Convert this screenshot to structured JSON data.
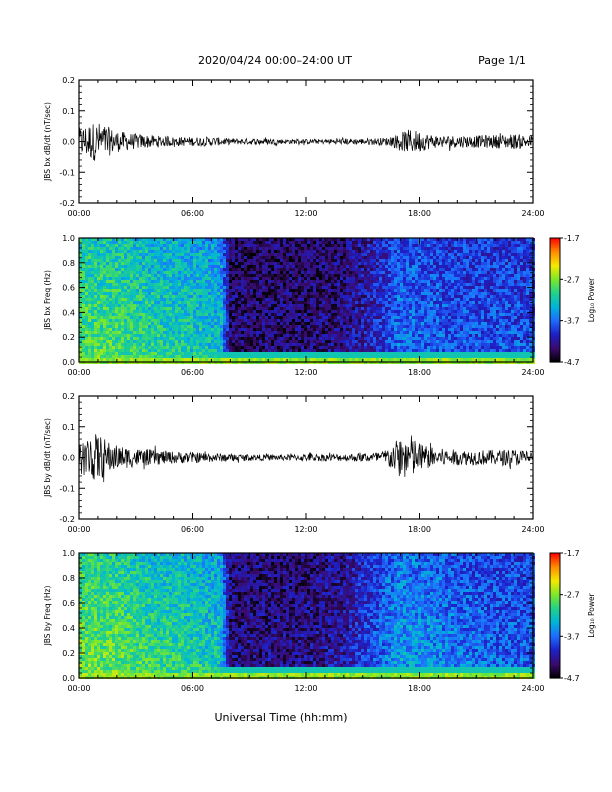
{
  "header": {
    "title": "2020/04/24  00:00–24:00 UT",
    "page": "Page 1/1"
  },
  "xaxis": {
    "label": "Universal Time (hh:mm)",
    "range_hours": [
      0,
      24
    ],
    "ticks": [
      0,
      6,
      12,
      18,
      24
    ],
    "tick_labels": [
      "00:00",
      "06:00",
      "12:00",
      "18:00",
      "24:00"
    ]
  },
  "colors": {
    "colormap": [
      "#000000",
      "#3a0b6e",
      "#1d20c8",
      "#1f6cff",
      "#00b4d8",
      "#22d18a",
      "#7ee82a",
      "#f5e900",
      "#ff8a00",
      "#ff0000"
    ],
    "trace": "#000000"
  },
  "chart_data": [
    {
      "type": "line",
      "ylabel": "JBS bx dB/dt (nT/sec)",
      "ylim": [
        -0.2,
        0.2
      ],
      "yticks": [
        -0.2,
        -0.1,
        0.0,
        0.1,
        0.2
      ],
      "ytick_labels": [
        "-0.2",
        "-0.1",
        "0.0",
        "0.1",
        "0.2"
      ],
      "envelope_hours": [
        0,
        0.5,
        1,
        1.5,
        2,
        3,
        4,
        5,
        6,
        7,
        8,
        9,
        10,
        11,
        12,
        13,
        14,
        15,
        16,
        16.5,
        17,
        17.5,
        18,
        18.5,
        19,
        20,
        21,
        22,
        23,
        24
      ],
      "envelope_amplitude": [
        0.045,
        0.06,
        0.065,
        0.05,
        0.035,
        0.025,
        0.02,
        0.015,
        0.015,
        0.015,
        0.01,
        0.01,
        0.01,
        0.008,
        0.008,
        0.008,
        0.01,
        0.01,
        0.012,
        0.015,
        0.03,
        0.04,
        0.035,
        0.025,
        0.02,
        0.02,
        0.02,
        0.022,
        0.025,
        0.02
      ]
    },
    {
      "type": "heatmap",
      "ylabel": "JBS bx Freq (Hz)",
      "ylim": [
        0.0,
        1.0
      ],
      "yticks": [
        0.0,
        0.2,
        0.4,
        0.6,
        0.8,
        1.0
      ],
      "ytick_labels": [
        "0.0",
        "0.2",
        "0.4",
        "0.6",
        "0.8",
        "1.0"
      ],
      "colorbar": {
        "label": "Log₁₀ Power",
        "range": [
          -4.7,
          -1.7
        ],
        "ticks": [
          -1.7,
          -2.7,
          -3.7,
          -4.7
        ],
        "tick_labels": [
          "-1.7",
          "-2.7",
          "-3.7",
          "-4.7"
        ]
      },
      "activity_hours": [
        0,
        2,
        4,
        6,
        7.5,
        8,
        10,
        12,
        14,
        16,
        17,
        18,
        20,
        22,
        24
      ],
      "activity_level": [
        0.62,
        0.6,
        0.55,
        0.52,
        0.48,
        0.12,
        0.12,
        0.12,
        0.14,
        0.25,
        0.36,
        0.34,
        0.3,
        0.3,
        0.3
      ]
    },
    {
      "type": "line",
      "ylabel": "JBS by dB/dt (nT/sec)",
      "ylim": [
        -0.2,
        0.2
      ],
      "yticks": [
        -0.2,
        -0.1,
        0.0,
        0.1,
        0.2
      ],
      "ytick_labels": [
        "-0.2",
        "-0.1",
        "0.0",
        "0.1",
        "0.2"
      ],
      "envelope_hours": [
        0,
        0.5,
        1,
        1.5,
        2,
        3,
        4,
        5,
        6,
        7,
        8,
        9,
        10,
        11,
        12,
        13,
        14,
        15,
        16,
        16.5,
        17,
        17.5,
        18,
        18.5,
        19,
        20,
        21,
        22,
        23,
        24
      ],
      "envelope_amplitude": [
        0.05,
        0.07,
        0.08,
        0.055,
        0.04,
        0.03,
        0.025,
        0.02,
        0.018,
        0.015,
        0.012,
        0.01,
        0.01,
        0.01,
        0.012,
        0.012,
        0.012,
        0.014,
        0.02,
        0.04,
        0.07,
        0.08,
        0.05,
        0.035,
        0.03,
        0.025,
        0.025,
        0.025,
        0.028,
        0.02
      ]
    },
    {
      "type": "heatmap",
      "ylabel": "JBS by Freq (Hz)",
      "ylim": [
        0.0,
        1.0
      ],
      "yticks": [
        0.0,
        0.2,
        0.4,
        0.6,
        0.8,
        1.0
      ],
      "ytick_labels": [
        "0.0",
        "0.2",
        "0.4",
        "0.6",
        "0.8",
        "1.0"
      ],
      "colorbar": {
        "label": "Log₁₀ Power",
        "range": [
          -4.7,
          -1.7
        ],
        "ticks": [
          -1.7,
          -2.7,
          -3.7,
          -4.7
        ],
        "tick_labels": [
          "-1.7",
          "-2.7",
          "-3.7",
          "-4.7"
        ]
      },
      "activity_hours": [
        0,
        2,
        4,
        6,
        7.5,
        8,
        10,
        12,
        14,
        16,
        17,
        18,
        20,
        22,
        24
      ],
      "activity_level": [
        0.66,
        0.64,
        0.58,
        0.55,
        0.5,
        0.14,
        0.14,
        0.14,
        0.18,
        0.34,
        0.42,
        0.4,
        0.36,
        0.33,
        0.32
      ]
    }
  ]
}
